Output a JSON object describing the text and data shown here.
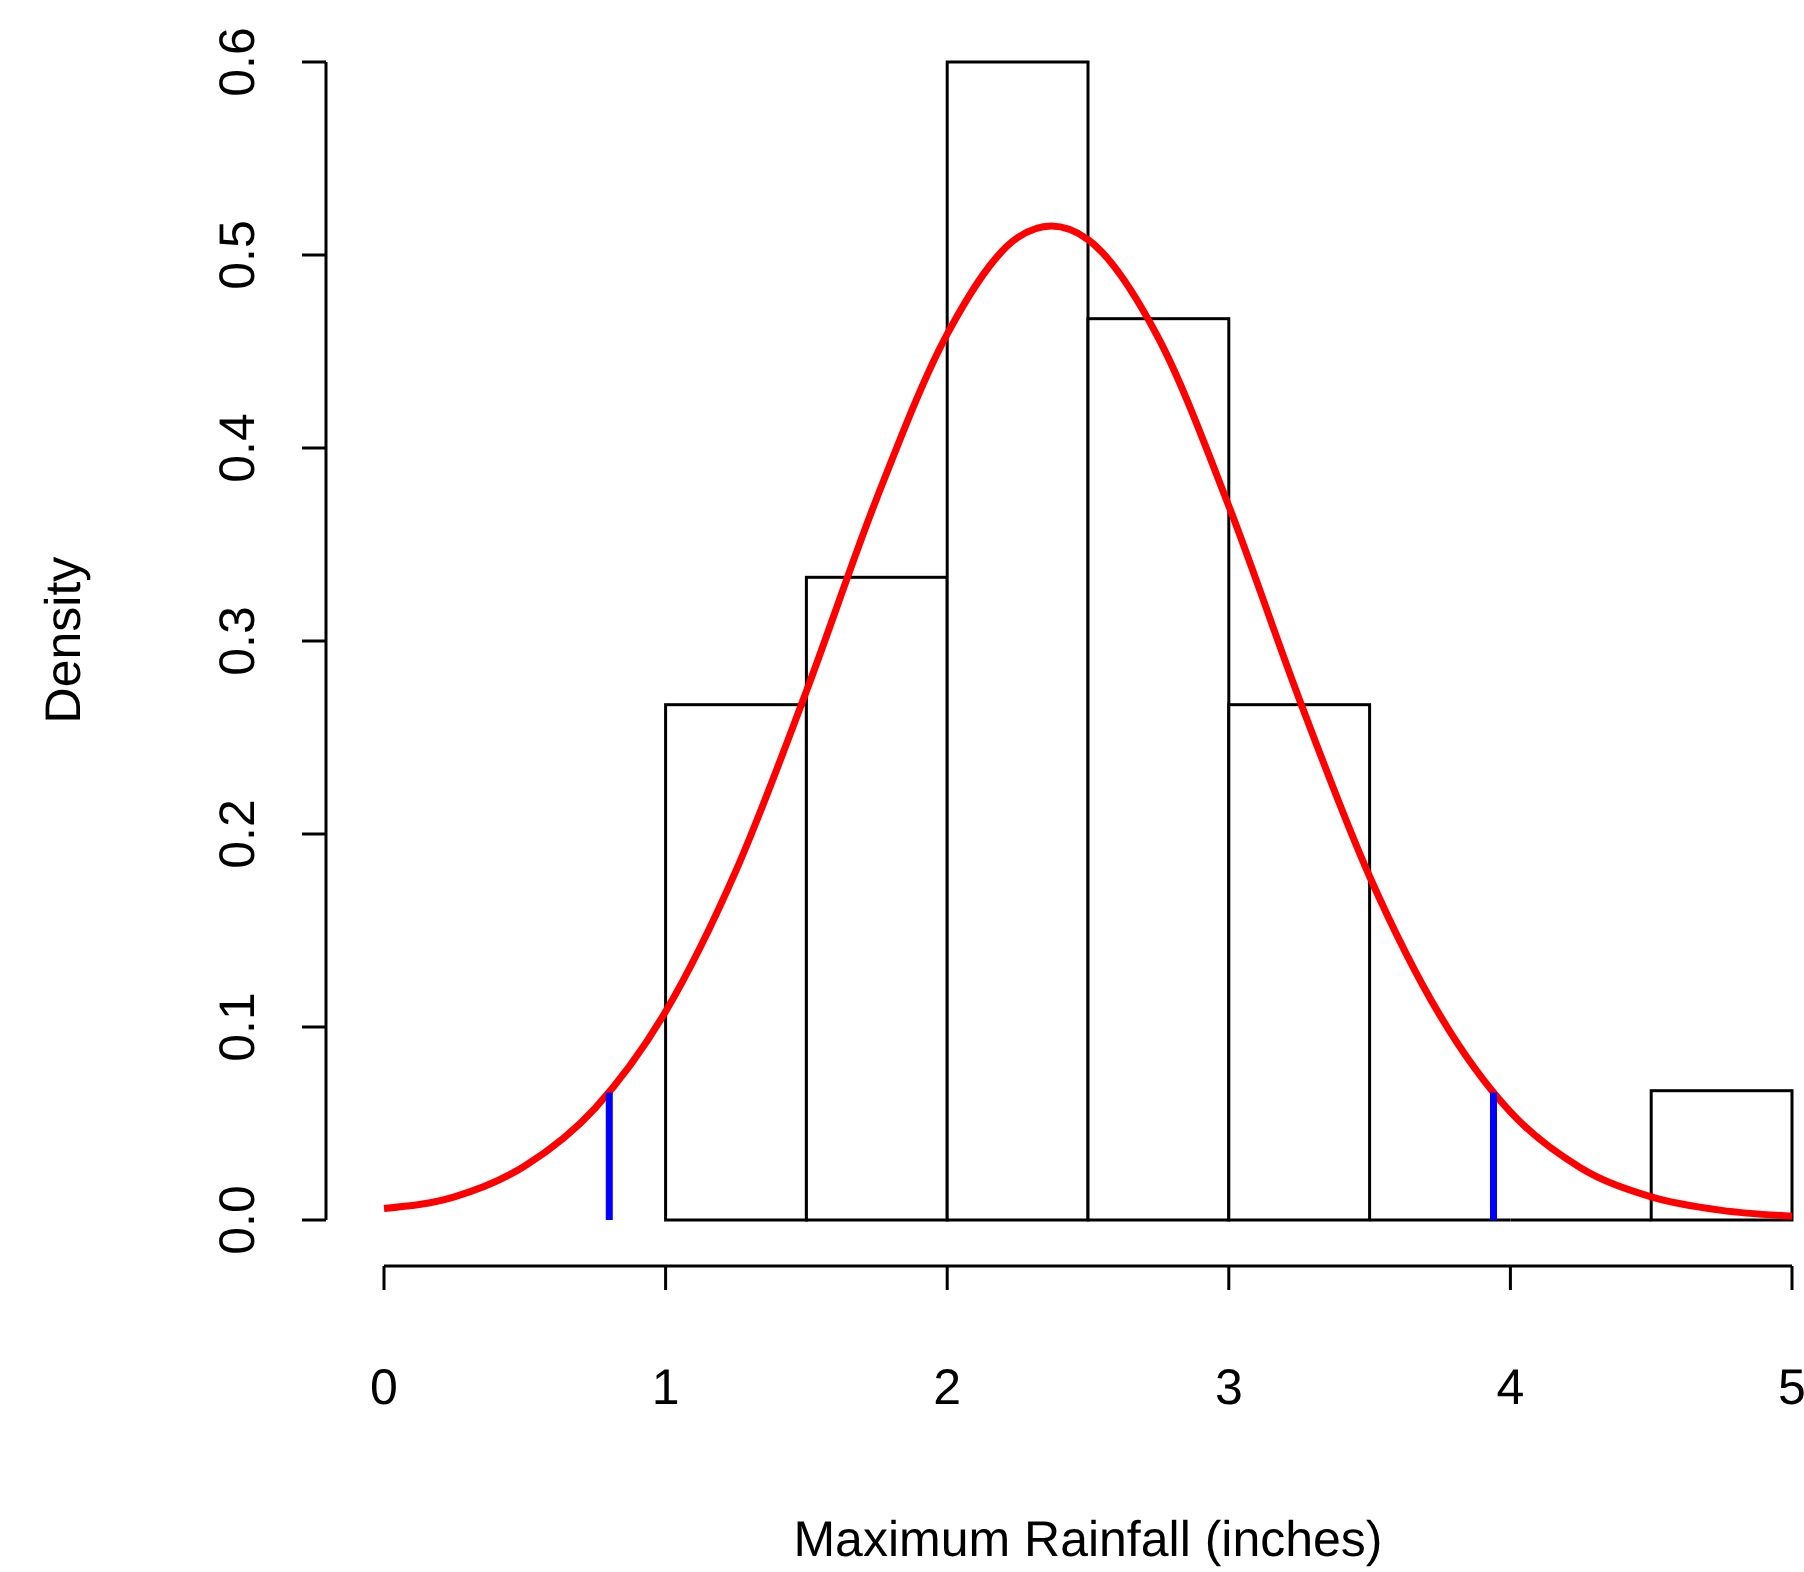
{
  "chart_data": {
    "type": "histogram",
    "xlabel": "Maximum Rainfall (inches)",
    "ylabel": "Density",
    "xlim": [
      0,
      5
    ],
    "xticks": [
      0,
      1,
      2,
      3,
      4,
      5
    ],
    "ylim": [
      0,
      0.6
    ],
    "yticks": [
      {
        "value": 0,
        "label": "0.0"
      },
      {
        "value": 0.1,
        "label": "0.1"
      },
      {
        "value": 0.2,
        "label": "0.2"
      },
      {
        "value": 0.3,
        "label": "0.3"
      },
      {
        "value": 0.4,
        "label": "0.4"
      },
      {
        "value": 0.5,
        "label": "0.5"
      },
      {
        "value": 0.6,
        "label": "0.6"
      }
    ],
    "grid": false,
    "series": [
      {
        "color": "#ffffff",
        "bins": [
          1,
          1.5,
          2,
          2.5,
          3,
          3.5,
          4,
          4.5,
          5
        ],
        "values": [
          0.267,
          0.333,
          0.6,
          0.467,
          0.267,
          0,
          0,
          0.067
        ]
      },
      {
        "type": "line",
        "color": "#ff0000",
        "x": [
          0,
          0.25,
          0.5,
          0.75,
          1,
          1.25,
          1.5,
          1.75,
          2,
          2.25,
          2.37,
          2.5,
          2.75,
          3,
          3.25,
          3.5,
          3.75,
          4,
          4.25,
          4.5,
          4.75,
          5
        ],
        "values": [
          0.006,
          0.012,
          0.028,
          0.058,
          0.108,
          0.181,
          0.274,
          0.374,
          0.459,
          0.509,
          0.515,
          0.508,
          0.457,
          0.37,
          0.27,
          0.178,
          0.106,
          0.056,
          0.027,
          0.012,
          0.005,
          0.002
        ]
      },
      {
        "type": "line",
        "color": "#0000ff",
        "x": [
          0.8,
          0.8
        ],
        "values": [
          0,
          0.066
        ]
      },
      {
        "type": "line",
        "color": "#0000ff",
        "x": [
          3.94,
          3.94
        ],
        "values": [
          0,
          0.066
        ]
      }
    ]
  }
}
